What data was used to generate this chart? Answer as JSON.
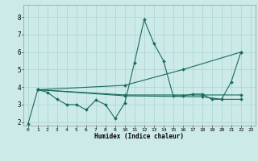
{
  "title": "",
  "xlabel": "Humidex (Indice chaleur)",
  "bg_color": "#cceae8",
  "grid_color": "#aad4d2",
  "line_color": "#1a6b60",
  "xlim": [
    -0.5,
    23.5
  ],
  "ylim": [
    1.8,
    8.7
  ],
  "xticks": [
    0,
    1,
    2,
    3,
    4,
    5,
    6,
    7,
    8,
    9,
    10,
    11,
    12,
    13,
    14,
    15,
    16,
    17,
    18,
    19,
    20,
    21,
    22,
    23
  ],
  "yticks": [
    2,
    3,
    4,
    5,
    6,
    7,
    8
  ],
  "lines_v2": [
    [
      0,
      1.9
    ],
    [
      1,
      3.85
    ],
    [
      2,
      3.7
    ],
    [
      3,
      3.3
    ],
    [
      4,
      3.0
    ],
    [
      5,
      3.0
    ],
    [
      6,
      2.7
    ],
    [
      7,
      3.25
    ],
    [
      8,
      3.0
    ],
    [
      9,
      2.2
    ],
    [
      10,
      3.1
    ],
    [
      11,
      5.4
    ],
    [
      12,
      7.85
    ],
    [
      13,
      6.5
    ],
    [
      14,
      5.5
    ],
    [
      15,
      3.5
    ],
    [
      16,
      3.5
    ],
    [
      17,
      3.6
    ],
    [
      18,
      3.6
    ],
    [
      19,
      3.3
    ],
    [
      20,
      3.3
    ],
    [
      21,
      4.3
    ],
    [
      22,
      6.0
    ]
  ],
  "line2": [
    [
      1,
      3.85
    ],
    [
      10,
      4.1
    ],
    [
      16,
      5.0
    ],
    [
      22,
      6.0
    ]
  ],
  "line3": [
    [
      1,
      3.85
    ],
    [
      10,
      3.55
    ],
    [
      18,
      3.55
    ],
    [
      22,
      3.55
    ]
  ],
  "line4": [
    [
      1,
      3.85
    ],
    [
      10,
      3.5
    ],
    [
      18,
      3.45
    ],
    [
      20,
      3.3
    ],
    [
      22,
      3.3
    ]
  ]
}
